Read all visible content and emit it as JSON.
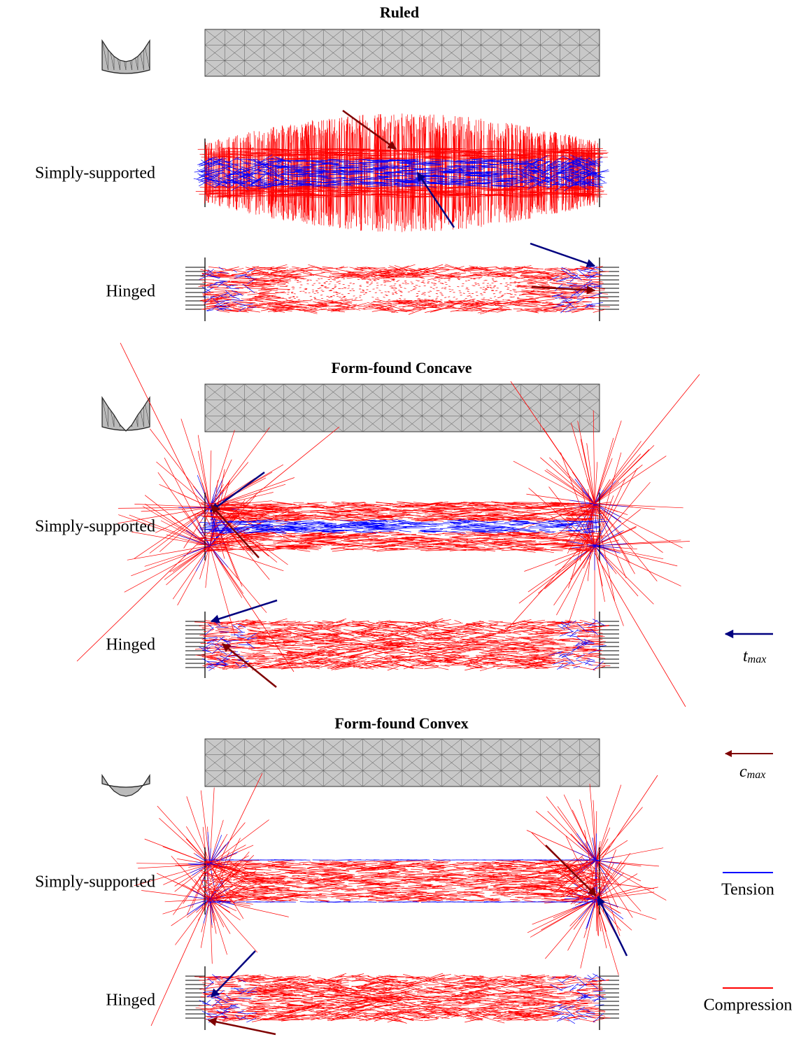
{
  "sections": [
    {
      "title": "Ruled",
      "rows": [
        "Simply-supported",
        "Hinged"
      ]
    },
    {
      "title": "Form-found Concave",
      "rows": [
        "Simply-supported",
        "Hinged"
      ]
    },
    {
      "title": "Form-found Convex",
      "rows": [
        "Simply-supported",
        "Hinged"
      ]
    }
  ],
  "legend": {
    "t_max": {
      "symbol": "t",
      "subscript": "max"
    },
    "c_max": {
      "symbol": "c",
      "subscript": "max"
    },
    "tension": "Tension",
    "compression": "Compression"
  }
}
